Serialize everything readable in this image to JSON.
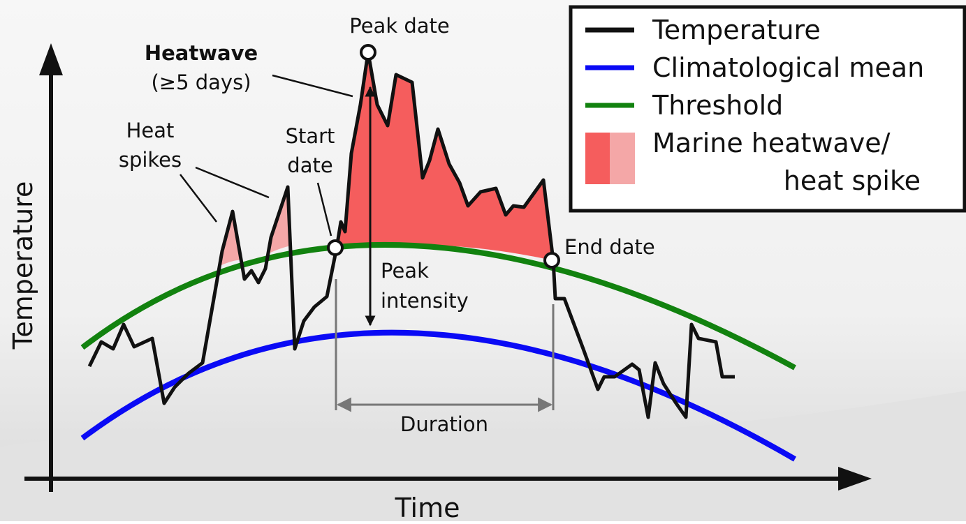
{
  "axes": {
    "x_label": "Time",
    "y_label": "Temperature"
  },
  "annotations": {
    "peak_date": "Peak date",
    "heatwave": {
      "title": "Heatwave",
      "note": "(≥5 days)"
    },
    "heat_spikes": [
      "Heat",
      "spikes"
    ],
    "start_date": [
      "Start",
      "date"
    ],
    "end_date": "End date",
    "peak_intensity": [
      "Peak",
      "intensity"
    ],
    "duration": "Duration"
  },
  "legend": {
    "items": [
      {
        "label": "Temperature"
      },
      {
        "label": "Climatological mean"
      },
      {
        "label": "Threshold"
      },
      {
        "label": [
          "Marine heatwave/",
          "heat spike"
        ]
      }
    ]
  }
}
